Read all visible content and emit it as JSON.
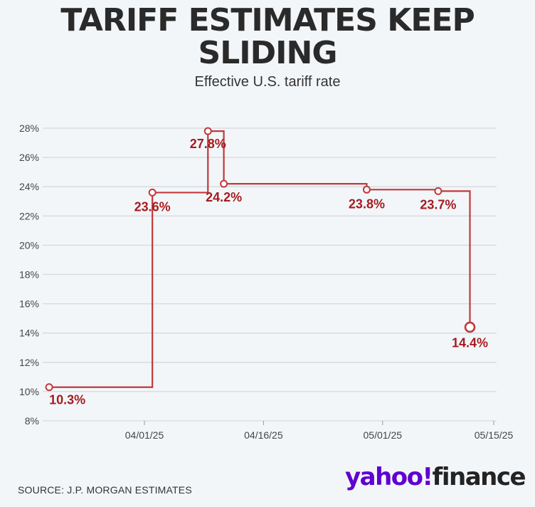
{
  "title": "TARIFF ESTIMATES KEEP SLIDING",
  "subtitle": "Effective U.S. tariff rate",
  "source": "SOURCE: J.P. MORGAN ESTIMATES",
  "brand": {
    "yahoo": "yahoo!",
    "finance": "finance"
  },
  "colors": {
    "line": "#c0393b",
    "label": "#a51c20",
    "grid": "#d5d9de",
    "axis_text": "#444444"
  },
  "chart_data": {
    "type": "line",
    "step": true,
    "title": "TARIFF ESTIMATES KEEP SLIDING",
    "subtitle": "Effective U.S. tariff rate",
    "xlabel": "",
    "ylabel": "",
    "ylim": [
      8,
      28
    ],
    "xlim": [
      "2025-03-20",
      "2025-05-15"
    ],
    "yticks": [
      8,
      10,
      12,
      14,
      16,
      18,
      20,
      22,
      24,
      26,
      28
    ],
    "ytick_labels": [
      "8%",
      "10%",
      "12%",
      "14%",
      "16%",
      "18%",
      "20%",
      "22%",
      "24%",
      "26%",
      "28%"
    ],
    "xticks": [
      "2025-04-01",
      "2025-04-16",
      "2025-05-01",
      "2025-05-15"
    ],
    "xtick_labels": [
      "04/01/25",
      "04/16/25",
      "05/01/25",
      "05/15/25"
    ],
    "grid": "horizontal",
    "series": [
      {
        "points": [
          {
            "x": "2025-03-20",
            "y": 10.3,
            "label": "10.3%"
          },
          {
            "x": "2025-04-02",
            "y": 23.6,
            "label": "23.6%"
          },
          {
            "x": "2025-04-09",
            "y": 27.8,
            "label": "27.8%"
          },
          {
            "x": "2025-04-11",
            "y": 24.2,
            "label": "24.2%"
          },
          {
            "x": "2025-04-29",
            "y": 23.8,
            "label": "23.8%"
          },
          {
            "x": "2025-05-08",
            "y": 23.7,
            "label": "23.7%"
          },
          {
            "x": "2025-05-12",
            "y": 14.4,
            "label": "14.4%"
          }
        ]
      }
    ]
  }
}
